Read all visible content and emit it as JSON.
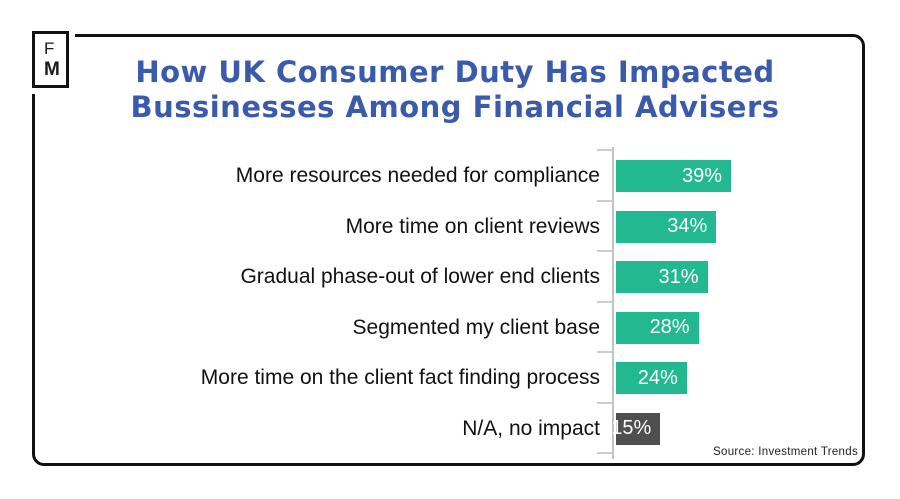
{
  "logo": {
    "letter1": "F",
    "letter2": "M"
  },
  "title": {
    "line1": "How UK Consumer Duty Has Impacted",
    "line2": "Bussinesses Among Financial Advisers",
    "color": "#3A5BAB"
  },
  "source": {
    "text": "Source: Investment Trends"
  },
  "colors": {
    "bar_teal": "#22B890",
    "bar_gray": "#4F4F4F",
    "title_blue": "#3A5BAB",
    "axis_gray": "#c2c2c2",
    "frame_black": "#111111",
    "value_text": "#ffffff"
  },
  "chart_data": {
    "type": "bar",
    "orientation": "horizontal",
    "title": "How UK Consumer Duty Has Impacted Bussinesses Among Financial Advisers",
    "categories": [
      "More resources needed for compliance",
      "More time on client reviews",
      "Gradual phase-out of lower end clients",
      "Segmented my client base",
      "More time on the client fact finding process",
      "N/A, no impact"
    ],
    "values": [
      39,
      34,
      31,
      28,
      24,
      15
    ],
    "value_labels": [
      "39%",
      "34%",
      "31%",
      "28%",
      "24%",
      "15%"
    ],
    "unit": "%",
    "bar_colors": [
      "#22B890",
      "#22B890",
      "#22B890",
      "#22B890",
      "#22B890",
      "#4F4F4F"
    ],
    "xlim": [
      0,
      45
    ],
    "grid": false,
    "legend": false,
    "value_label_position": "inside-right",
    "source": "Source: Investment Trends"
  }
}
